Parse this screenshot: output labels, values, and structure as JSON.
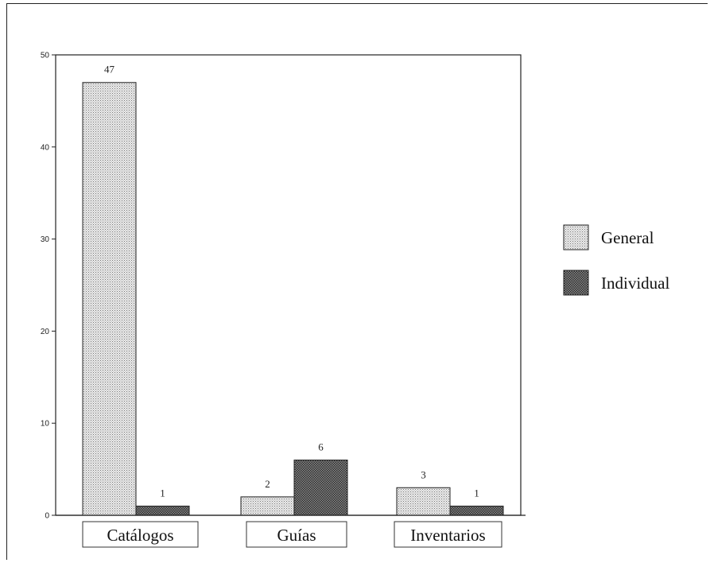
{
  "chart_data": {
    "type": "bar",
    "categories": [
      "Catálogos",
      "Guías",
      "Inventarios"
    ],
    "series": [
      {
        "name": "General",
        "values": [
          47,
          2,
          3
        ],
        "pattern": "light-stipple"
      },
      {
        "name": "Individual",
        "values": [
          1,
          6,
          1
        ],
        "pattern": "dark-crosshatch"
      }
    ],
    "data_labels": [
      "47",
      "1",
      "2",
      "6",
      "3",
      "1"
    ],
    "ylim": [
      0,
      50
    ],
    "yticks": [
      "0",
      "10",
      "20",
      "30",
      "40",
      "50"
    ],
    "title": "",
    "xlabel": "",
    "ylabel": "",
    "legend_position": "right",
    "grid": false
  }
}
